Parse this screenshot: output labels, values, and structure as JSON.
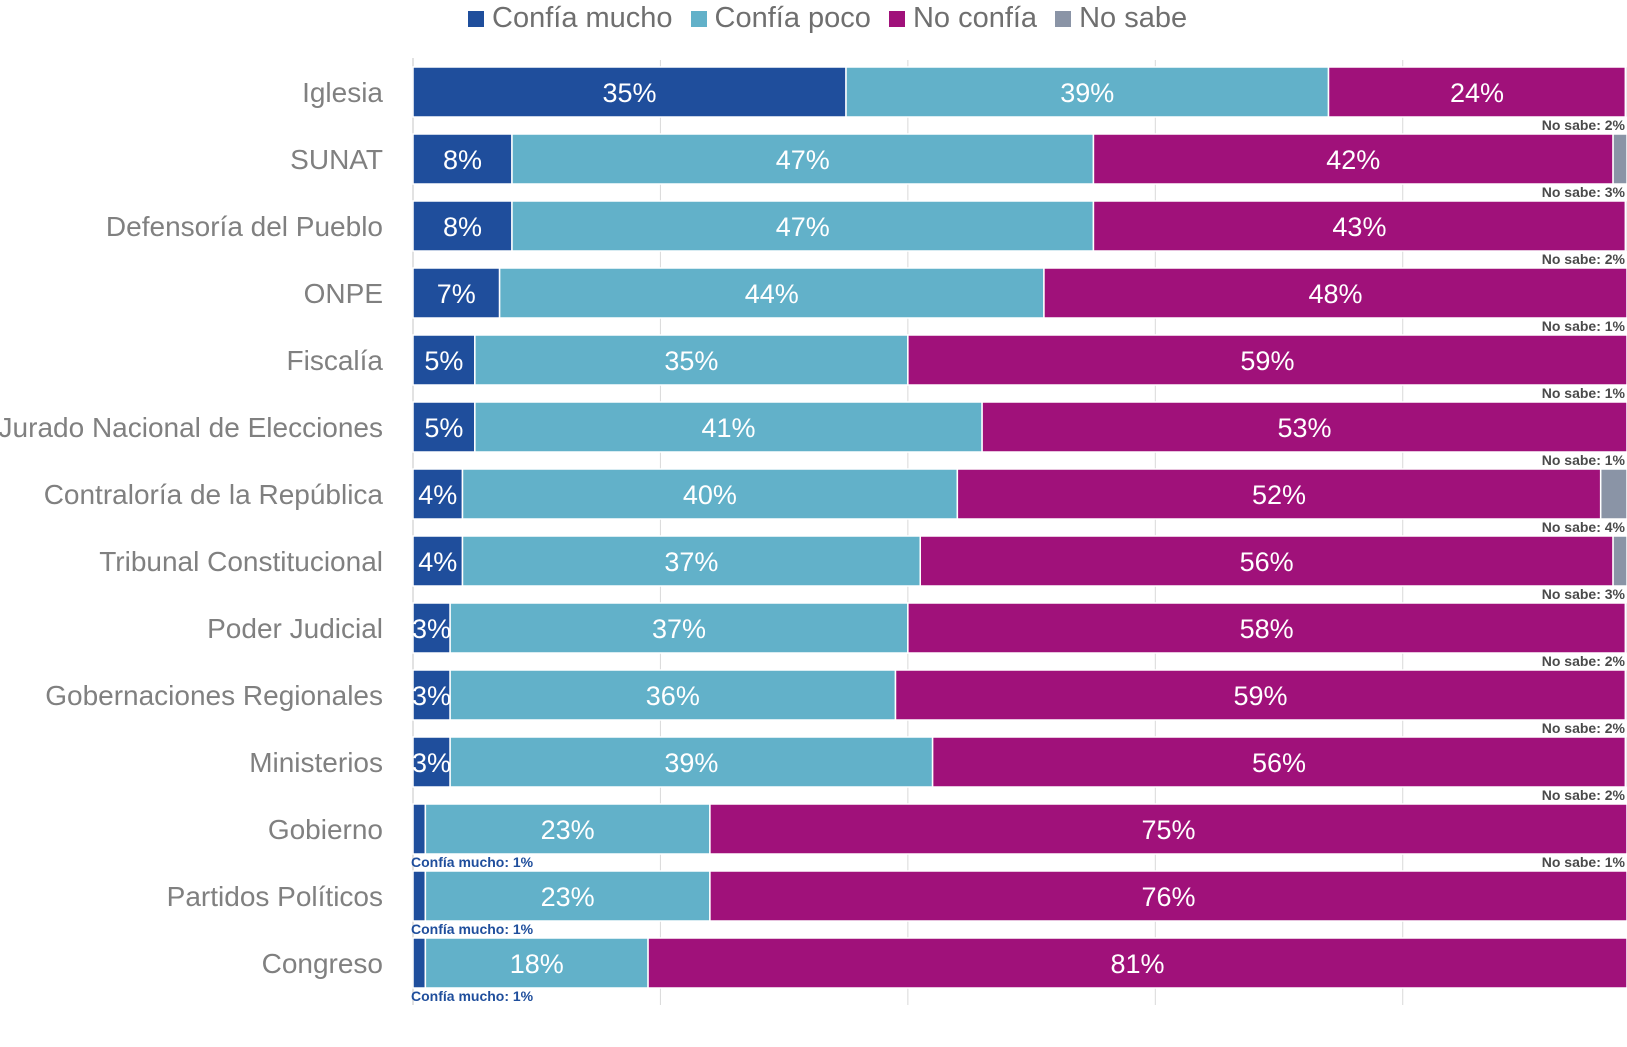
{
  "chart_data": {
    "type": "bar",
    "orientation": "horizontal",
    "stacked": true,
    "xlim": [
      0,
      100
    ],
    "grid": true,
    "legend_position": "top",
    "categories": [
      "Iglesia",
      "SUNAT",
      "Defensoría del Pueblo",
      "ONPE",
      "Fiscalía",
      "Jurado Nacional de Elecciones",
      "Contraloría de la República",
      "Tribunal Constitucional",
      "Poder Judicial",
      "Gobernaciones Regionales",
      "Ministerios",
      "Gobierno",
      "Partidos Políticos",
      "Congreso"
    ],
    "series": [
      {
        "name": "Confía mucho",
        "color": "#1f4e9c",
        "values": [
          35,
          8,
          8,
          7,
          5,
          5,
          4,
          4,
          3,
          3,
          3,
          1,
          1,
          1
        ]
      },
      {
        "name": "Confía poco",
        "color": "#62b1c9",
        "values": [
          39,
          47,
          47,
          44,
          35,
          41,
          40,
          37,
          37,
          36,
          39,
          23,
          23,
          18
        ]
      },
      {
        "name": "No confía",
        "color": "#a0117a",
        "values": [
          24,
          42,
          43,
          48,
          59,
          53,
          52,
          56,
          58,
          59,
          56,
          75,
          76,
          81
        ]
      },
      {
        "name": "No sabe",
        "color": "#8a94a6",
        "values": [
          2,
          3,
          2,
          1,
          1,
          1,
          4,
          3,
          2,
          2,
          2,
          1,
          0,
          0
        ]
      }
    ],
    "data_labels": [
      [
        "35%",
        "39%",
        "24%",
        ""
      ],
      [
        "8%",
        "47%",
        "42%",
        ""
      ],
      [
        "8%",
        "47%",
        "43%",
        ""
      ],
      [
        "7%",
        "44%",
        "48%",
        ""
      ],
      [
        "5%",
        "35%",
        "59%",
        ""
      ],
      [
        "5%",
        "41%",
        "53%",
        ""
      ],
      [
        "4%",
        "40%",
        "52%",
        ""
      ],
      [
        "4%",
        "37%",
        "56%",
        ""
      ],
      [
        "3%",
        "37%",
        "58%",
        ""
      ],
      [
        "3%",
        "36%",
        "59%",
        ""
      ],
      [
        "3%",
        "39%",
        "56%",
        ""
      ],
      [
        "",
        "23%",
        "75%",
        ""
      ],
      [
        "",
        "23%",
        "76%",
        ""
      ],
      [
        "",
        "18%",
        "81%",
        ""
      ]
    ],
    "annotations_right": [
      "No sabe: 2%",
      "No sabe: 3%",
      "No sabe: 2%",
      "No sabe: 1%",
      "No sabe: 1%",
      "No sabe: 1%",
      "No sabe: 4%",
      "No sabe: 3%",
      "No sabe: 2%",
      "No sabe: 2%",
      "No sabe: 2%",
      "No sabe: 1%",
      "",
      ""
    ],
    "annotations_left": [
      "",
      "",
      "",
      "",
      "",
      "",
      "",
      "",
      "",
      "",
      "",
      "Confía mucho: 1%",
      "Confía mucho: 1%",
      "Confía mucho: 1%"
    ]
  },
  "colors": {
    "category_label": "#808080",
    "annotation_right": "#4a4a4a",
    "annotation_left": "#1f4e9c",
    "gridline": "#d9d9d9",
    "bar_label": "#ffffff"
  }
}
